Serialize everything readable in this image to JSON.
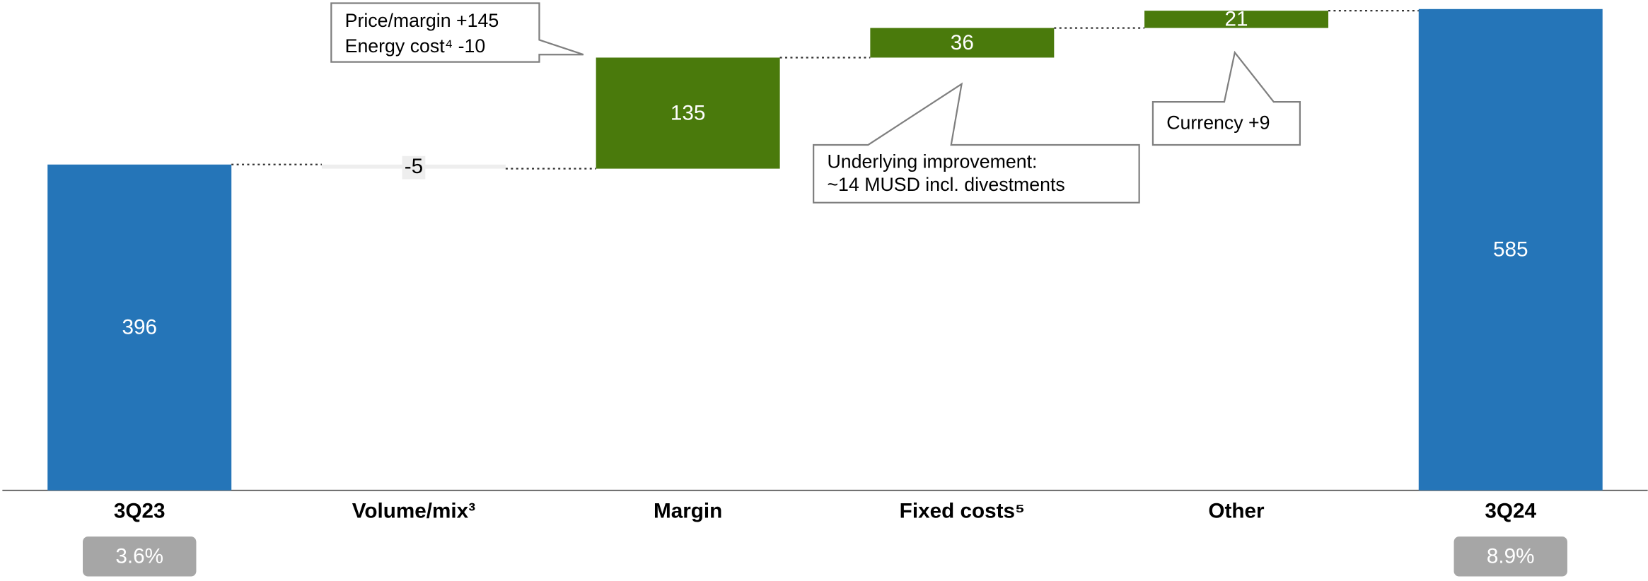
{
  "chart_data": {
    "type": "waterfall",
    "categories": [
      "3Q23",
      "Volume/mix³",
      "Margin",
      "Fixed costs⁵",
      "Other",
      "3Q24"
    ],
    "values": [
      396,
      -5,
      135,
      36,
      21,
      585
    ],
    "is_total": [
      true,
      false,
      false,
      false,
      false,
      true
    ],
    "colors": {
      "total": "#2575b8",
      "increase": "#4a7a0c",
      "decrease": "#eeeeee"
    },
    "ylim": [
      0,
      596
    ],
    "margin_badges": {
      "values": [
        3.6,
        null,
        null,
        null,
        null,
        8.9
      ],
      "value_labels": [
        "3.6%",
        null,
        null,
        null,
        null,
        "8.9%"
      ]
    },
    "annotations": [
      [
        "Price/margin +145",
        "Energy cost⁴ -10"
      ],
      [
        "Underlying improvement:",
        "~14 MUSD incl. divestments"
      ],
      [
        "Currency +9"
      ]
    ]
  }
}
